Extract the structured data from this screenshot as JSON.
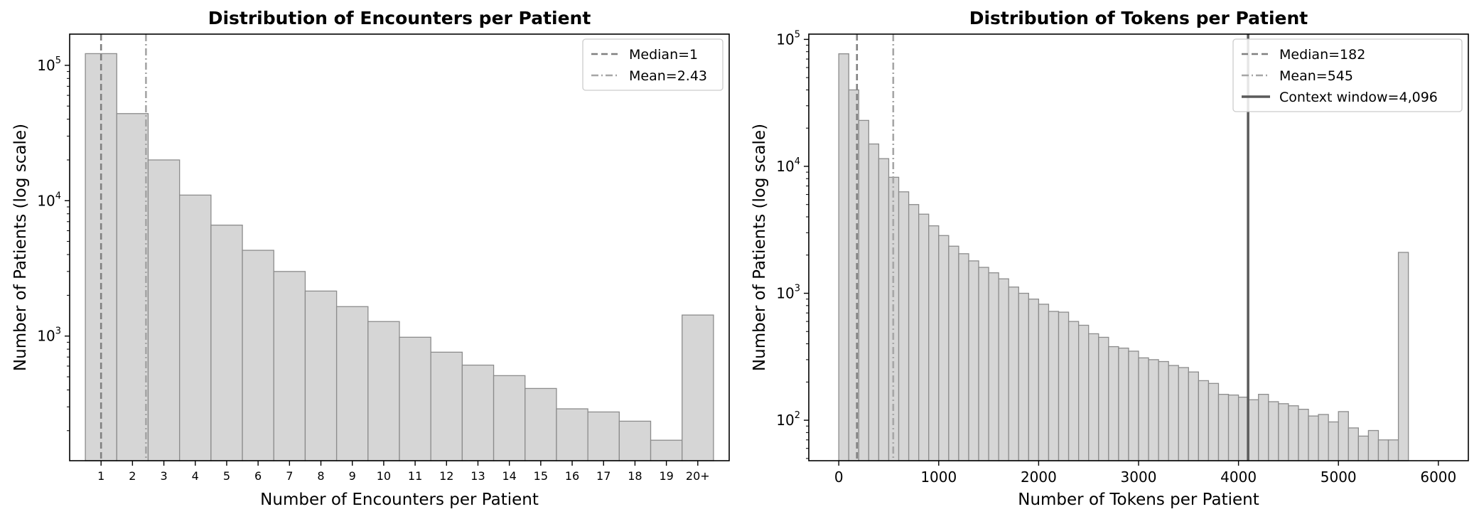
{
  "chart_data": [
    {
      "type": "bar",
      "title": "Distribution of Encounters per Patient",
      "xlabel": "Number of Encounters per Patient",
      "ylabel": "Number of Patients (log scale)",
      "yscale": "log",
      "ylim": [
        120,
        170000
      ],
      "categories": [
        "1",
        "2",
        "3",
        "4",
        "5",
        "6",
        "7",
        "8",
        "9",
        "10",
        "11",
        "12",
        "13",
        "14",
        "15",
        "16",
        "17",
        "18",
        "19",
        "20+"
      ],
      "values": [
        122000,
        44000,
        20000,
        11000,
        6600,
        4300,
        3000,
        2150,
        1650,
        1280,
        980,
        760,
        610,
        510,
        410,
        290,
        275,
        235,
        170,
        1430
      ],
      "yticks": [
        {
          "base": "10",
          "exp": "3",
          "value": 1000
        },
        {
          "base": "10",
          "exp": "4",
          "value": 10000
        },
        {
          "base": "10",
          "exp": "5",
          "value": 100000
        }
      ],
      "lines": [
        {
          "label": "Median=1",
          "x": 1,
          "style": "dashed",
          "color": "#808080"
        },
        {
          "label": "Mean=2.43",
          "x": 2.43,
          "style": "dashdot",
          "color": "#a6a6a6"
        }
      ],
      "legend": "top-right"
    },
    {
      "type": "bar",
      "title": "Distribution of Tokens per Patient",
      "xlabel": "Number of Tokens per Patient",
      "ylabel": "Number of Patients (log scale)",
      "yscale": "log",
      "ylim": [
        48,
        110000
      ],
      "bin_width": 100,
      "bin_start": 0,
      "xlim": [
        -300,
        6300
      ],
      "xticks": [
        "0",
        "1000",
        "2000",
        "3000",
        "4000",
        "5000",
        "6000"
      ],
      "xtick_values": [
        0,
        1000,
        2000,
        3000,
        4000,
        5000,
        6000
      ],
      "values": [
        77000,
        40000,
        23000,
        15000,
        11500,
        8200,
        6300,
        5000,
        4200,
        3400,
        2850,
        2350,
        2050,
        1800,
        1600,
        1450,
        1300,
        1120,
        1000,
        900,
        820,
        720,
        710,
        600,
        560,
        480,
        450,
        380,
        370,
        350,
        310,
        300,
        290,
        270,
        260,
        240,
        205,
        195,
        160,
        158,
        152,
        145,
        160,
        140,
        135,
        130,
        122,
        108,
        111,
        97,
        117,
        87,
        75,
        83,
        70,
        70,
        2100
      ],
      "yticks": [
        {
          "base": "10",
          "exp": "2",
          "value": 100
        },
        {
          "base": "10",
          "exp": "3",
          "value": 1000
        },
        {
          "base": "10",
          "exp": "4",
          "value": 10000
        },
        {
          "base": "10",
          "exp": "5",
          "value": 100000
        }
      ],
      "lines": [
        {
          "label": "Median=182",
          "x": 182,
          "style": "dashed",
          "color": "#808080"
        },
        {
          "label": "Mean=545",
          "x": 545,
          "style": "dashdot",
          "color": "#a6a6a6"
        },
        {
          "label": "Context window=4,096",
          "x": 4096,
          "style": "solid",
          "color": "#5a5a5a"
        }
      ],
      "legend": "top-right"
    }
  ]
}
